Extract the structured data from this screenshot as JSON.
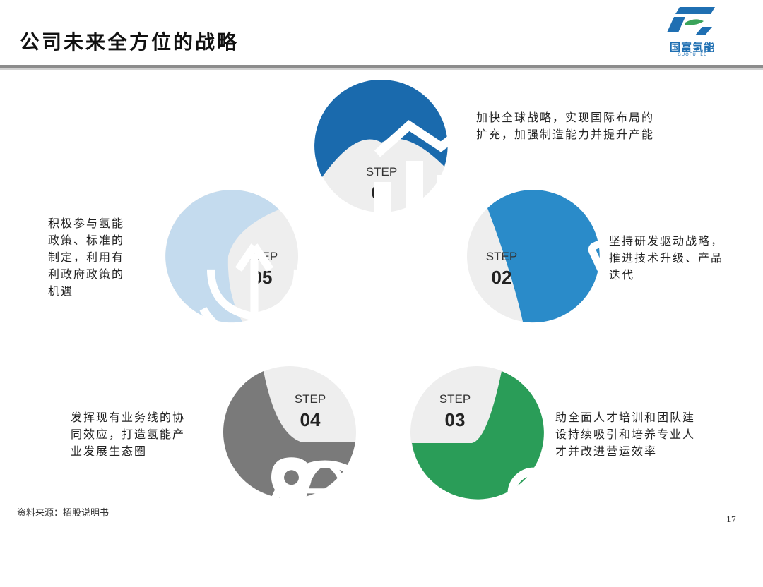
{
  "page": {
    "title": "公司未来全方位的战略"
  },
  "logo": {
    "name": "国富氢能",
    "subtitle": "GUOFUHEE"
  },
  "steps": [
    {
      "label": "STEP",
      "number": "01",
      "color": "#1a6aad",
      "icon": "chart-icon",
      "text": [
        "加快全球战略，实现国际布局的",
        "扩充，加强制造能力并提升产能"
      ]
    },
    {
      "label": "STEP",
      "number": "02",
      "color": "#2a8bc9",
      "icon": "microscope-icon",
      "text": [
        "坚持研发驱动战略，",
        "推进技术升级、产品",
        "迭代"
      ]
    },
    {
      "label": "STEP",
      "number": "03",
      "color": "#2a9d58",
      "icon": "team-icon",
      "text": [
        "助全面人才培训和团队建",
        "设持续吸引和培养专业人",
        "才并改进营运效率"
      ]
    },
    {
      "label": "STEP",
      "number": "04",
      "color": "#7a7a7a",
      "icon": "globe-location-icon",
      "text": [
        "发挥现有业务线的协",
        "同效应，打造氢能产",
        "业发展生态圈"
      ]
    },
    {
      "label": "STEP",
      "number": "05",
      "color": "#c4dbee",
      "icon": "plant-icon",
      "text": [
        "积极参与氢能",
        "政策、标准的",
        "制定，利用有",
        "利政府政策的",
        "机遇"
      ]
    }
  ],
  "footer": {
    "source": "资料来源：招股说明书",
    "page_number": "17"
  }
}
